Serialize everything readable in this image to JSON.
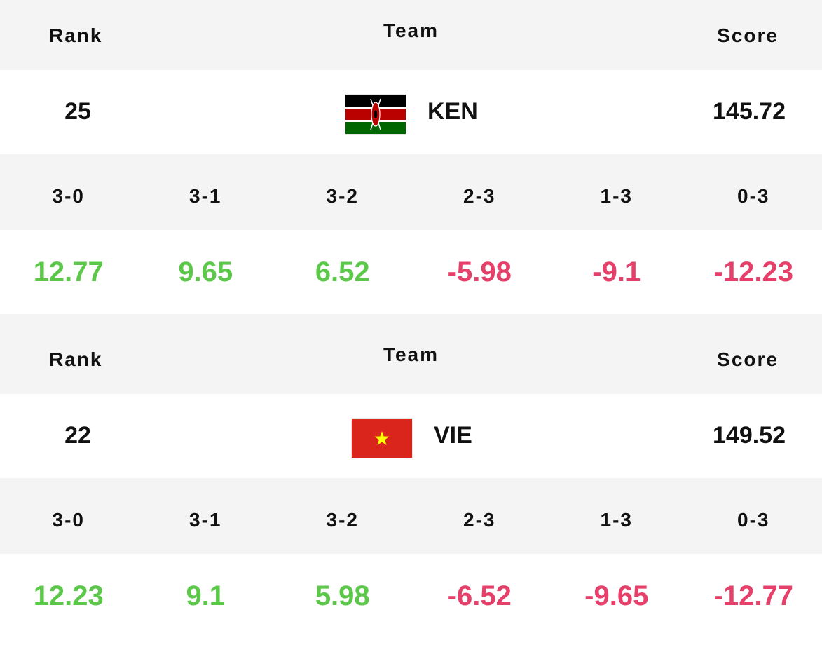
{
  "headers": {
    "rank": "Rank",
    "team": "Team",
    "score": "Score"
  },
  "colors": {
    "positive": "#5cc84a",
    "negative": "#e63f6a",
    "header_bg": "#f4f4f4"
  },
  "result_labels": [
    "3-0",
    "3-1",
    "3-2",
    "2-3",
    "1-3",
    "0-3"
  ],
  "teams": [
    {
      "rank": "25",
      "code": "KEN",
      "flag_icon": "kenya-flag-icon",
      "score": "145.72",
      "results": [
        "12.77",
        "9.65",
        "6.52",
        "-5.98",
        "-9.1",
        "-12.23"
      ]
    },
    {
      "rank": "22",
      "code": "VIE",
      "flag_icon": "vietnam-flag-icon",
      "score": "149.52",
      "results": [
        "12.23",
        "9.1",
        "5.98",
        "-6.52",
        "-9.65",
        "-12.77"
      ]
    }
  ]
}
